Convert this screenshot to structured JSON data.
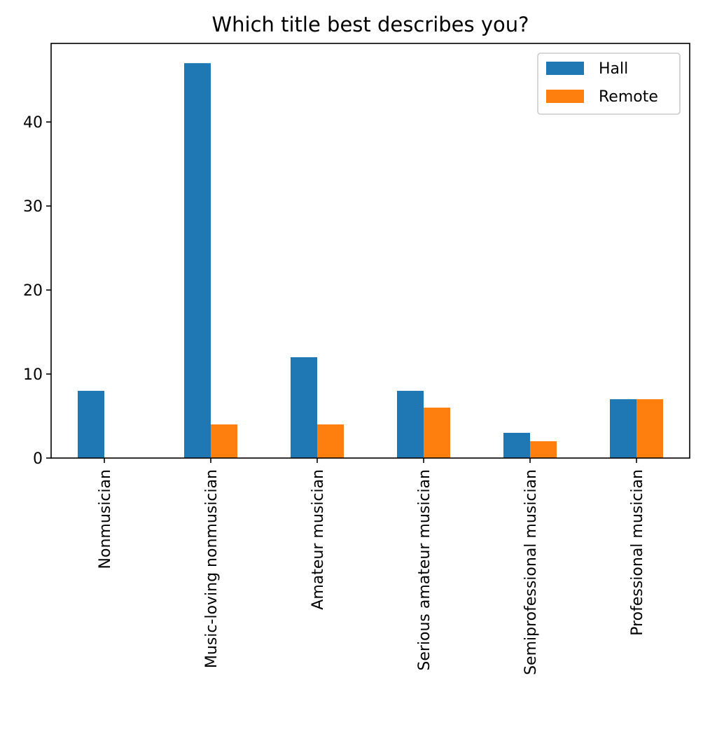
{
  "chart_data": {
    "type": "bar",
    "title": "Which title best describes you?",
    "xlabel": "",
    "ylabel": "",
    "categories": [
      "Nonmusician",
      "Music-loving nonmusician",
      "Amateur musician",
      "Serious amateur musician",
      "Semiprofessional musician",
      "Professional musician"
    ],
    "series": [
      {
        "name": "Hall",
        "color": "#1f77b4",
        "values": [
          8,
          47,
          12,
          8,
          3,
          7
        ]
      },
      {
        "name": "Remote",
        "color": "#ff7f0e",
        "values": [
          0,
          4,
          4,
          6,
          2,
          7
        ]
      }
    ],
    "ylim": [
      0,
      49.35
    ],
    "yticks": [
      0,
      10,
      20,
      30,
      40
    ],
    "grid": false,
    "legend_position": "top-right"
  }
}
